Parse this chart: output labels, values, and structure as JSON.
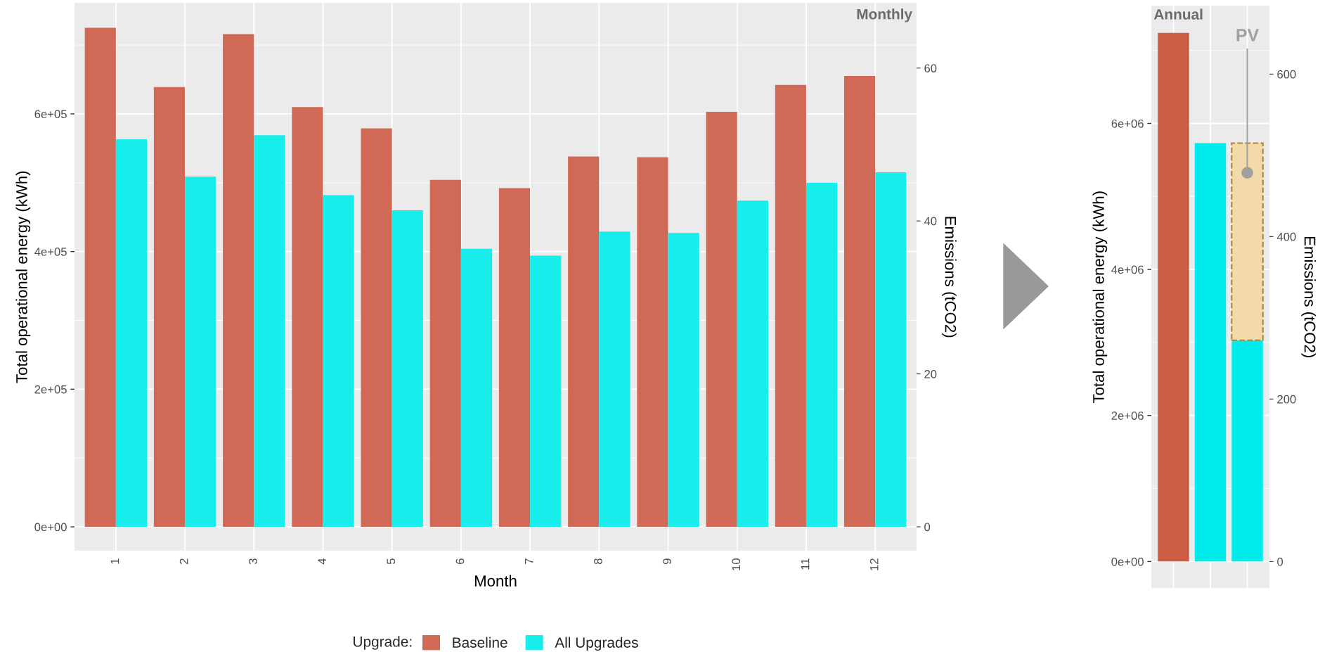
{
  "chart_data": [
    {
      "type": "bar",
      "title": "Monthly",
      "xlabel": "Month",
      "ylabel": "Total operational energy (kWh)",
      "y2label": "Emissions (tCO2)",
      "legend_title": "Upgrade:",
      "categories": [
        "1",
        "2",
        "3",
        "4",
        "5",
        "6",
        "7",
        "8",
        "9",
        "10",
        "11",
        "12"
      ],
      "series": [
        {
          "name": "Baseline",
          "color": "#d06a56",
          "values": [
            725000,
            639000,
            716000,
            610000,
            579000,
            504000,
            492000,
            538000,
            537000,
            603000,
            642000,
            655000
          ]
        },
        {
          "name": "All Upgrades",
          "color": "#17eeec",
          "values": [
            563000,
            509000,
            569000,
            482000,
            460000,
            404000,
            394000,
            429000,
            427000,
            474000,
            500000,
            515000
          ]
        }
      ],
      "ylim": [
        -34700,
        761000
      ],
      "yticks": [
        {
          "value": 0,
          "label": "0e+00"
        },
        {
          "value": 200000,
          "label": "2e+05"
        },
        {
          "value": 400000,
          "label": "4e+05"
        },
        {
          "value": 600000,
          "label": "6e+05"
        }
      ],
      "y2lim": [
        -3.13,
        68.5
      ],
      "y2ticks": [
        0,
        20,
        40,
        60
      ],
      "grid": true,
      "legend": "bottom"
    },
    {
      "type": "bar",
      "title": "Annual",
      "ylabel": "Total operational energy (kWh)",
      "y2label": "Emissions (tCO2)",
      "stacked": true,
      "categories": [
        null,
        null,
        null
      ],
      "series": [
        {
          "color": "#cd5c45",
          "values": [
            7240000,
            null,
            null
          ]
        },
        {
          "color": "#00ebeb",
          "values": [
            null,
            5730000,
            3030000
          ]
        },
        {
          "name": "PV",
          "color": "#f2dba8",
          "line_style": "dashed",
          "values": [
            null,
            null,
            2700000
          ]
        }
      ],
      "ylim": [
        -364000,
        7610000
      ],
      "yticks": [
        {
          "value": 0,
          "label": "0e+00"
        },
        {
          "value": 2000000,
          "label": "2e+06"
        },
        {
          "value": 4000000,
          "label": "4e+06"
        },
        {
          "value": 6000000,
          "label": "6e+06"
        }
      ],
      "y2lim": [
        -32.7,
        684
      ],
      "y2ticks": [
        0,
        200,
        400,
        600
      ],
      "grid": true
    }
  ]
}
